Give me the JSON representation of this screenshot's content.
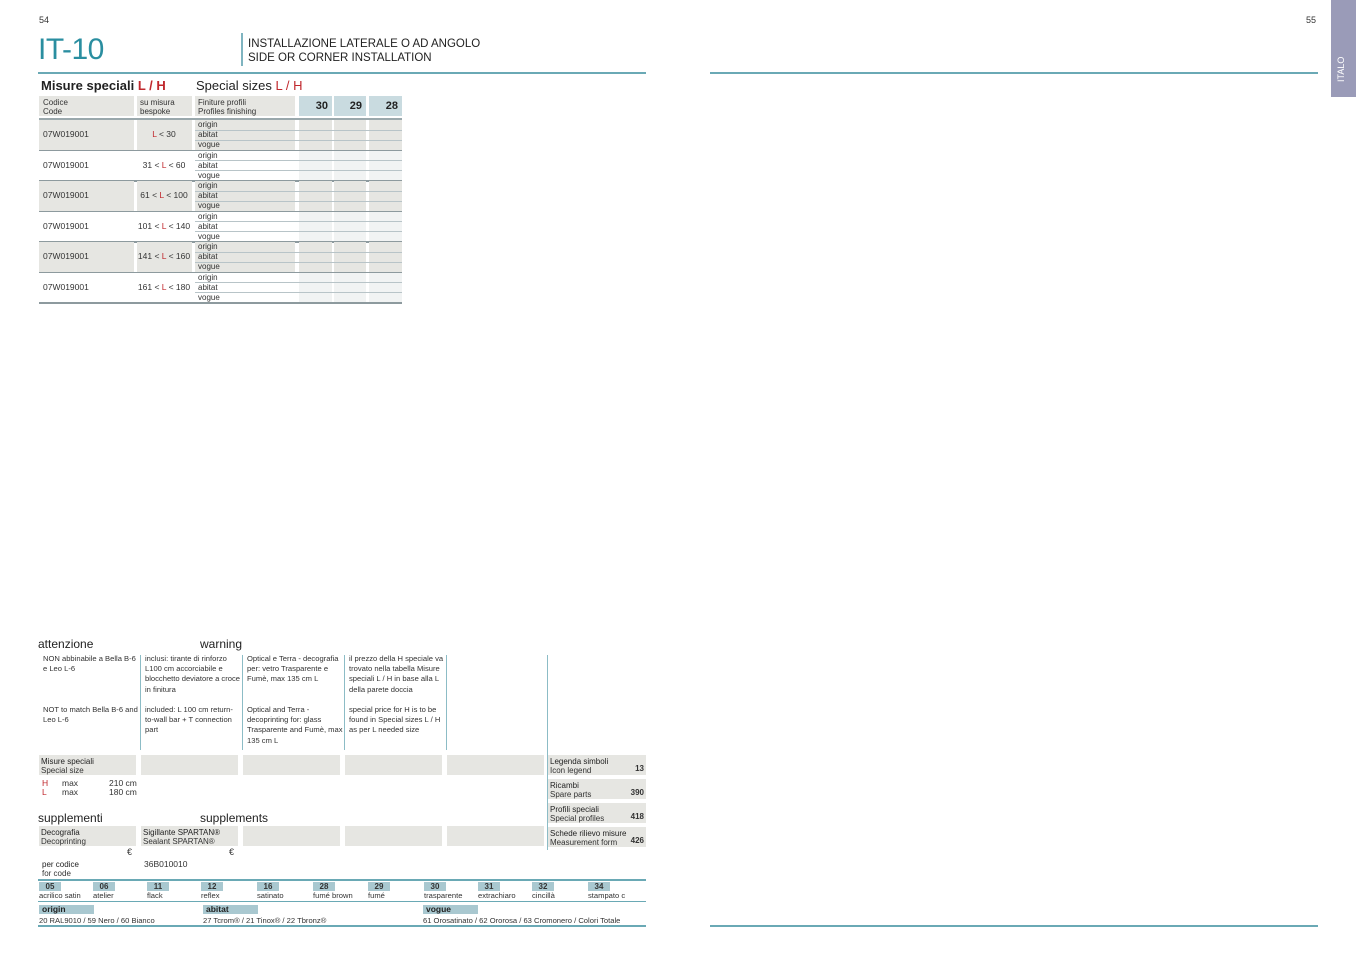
{
  "page_left": "54",
  "page_right": "55",
  "title": "IT-10",
  "subtitle": [
    "INSTALLAZIONE LATERALE O AD ANGOLO",
    "SIDE OR CORNER INSTALLATION"
  ],
  "side_tab": "ITALO",
  "special_sizes": {
    "it": "Misure speciali",
    "en": "Special sizes",
    "lh": "L / H",
    "headers": {
      "code_it": "Codice",
      "code_en": "Code",
      "bespoke_it": "su misura",
      "bespoke_en": "bespoke",
      "finish_it": "Finiture profili",
      "finish_en": "Profiles finishing",
      "cols": [
        "30",
        "29",
        "28"
      ]
    },
    "finishes": [
      "origin",
      "abitat",
      "vogue"
    ],
    "rows": [
      {
        "code": "07W019001",
        "pre": "",
        "post": " < 30"
      },
      {
        "code": "07W019001",
        "pre": "31 < ",
        "post": " < 60"
      },
      {
        "code": "07W019001",
        "pre": "61 < ",
        "post": " < 100"
      },
      {
        "code": "07W019001",
        "pre": "101 < ",
        "post": " < 140"
      },
      {
        "code": "07W019001",
        "pre": "141 < ",
        "post": " < 160"
      },
      {
        "code": "07W019001",
        "pre": "161 < ",
        "post": " < 180"
      }
    ]
  },
  "warning": {
    "it": "attenzione",
    "en": "warning",
    "notes": [
      {
        "it": "NON abbinabile a Bella B-6 e Leo L-6",
        "en": "NOT to match Bella B-6 and Leo L-6"
      },
      {
        "it": "inclusi: tirante di rinforzo L100 cm accorciabile e blocchetto deviatore a croce in finitura",
        "en": "included: L 100 cm return-to-wall bar + T connection part"
      },
      {
        "it": "Optical e Terra - decografia per: vetro Trasparente e Fumè, max 135 cm L",
        "en": "Optical and Terra - decoprinting for: glass Trasparente and Fumè, max 135 cm L"
      },
      {
        "it": "il prezzo della H speciale va trovato nella tabella Misure speciali L / H in base alla L della parete doccia",
        "en": "special price for H is to be found in Special sizes L / H as per L needed size"
      }
    ]
  },
  "special_size_box": {
    "it": "Misure speciali",
    "en": "Special size",
    "h": "H",
    "l": "L",
    "max": "max",
    "h_val": "210 cm",
    "l_val": "180 cm"
  },
  "refs": [
    {
      "it": "Legenda simboli",
      "en": "Icon legend",
      "page": "13"
    },
    {
      "it": "Ricambi",
      "en": "Spare parts",
      "page": "390"
    },
    {
      "it": "Profili speciali",
      "en": "Special profiles",
      "page": "418"
    },
    {
      "it": "Schede rilievo misure",
      "en": "Measurement form",
      "page": "426"
    }
  ],
  "supplements": {
    "it": "supplementi",
    "en": "supplements",
    "items": [
      {
        "it": "Decografia",
        "en": "Decoprinting",
        "currency": "€"
      },
      {
        "it": "Sigillante SPARTAN®",
        "en": "Sealant SPARTAN®",
        "currency": "€"
      }
    ],
    "per_code_it": "per codice",
    "per_code_en": "for code",
    "code": "36B010010"
  },
  "glass": [
    [
      "05",
      "acrilico satin"
    ],
    [
      "06",
      "atelier"
    ],
    [
      "11",
      "flack"
    ],
    [
      "12",
      "reflex"
    ],
    [
      "16",
      "satinato"
    ],
    [
      "28",
      "fumé brown"
    ],
    [
      "29",
      "fumé"
    ],
    [
      "30",
      "trasparente"
    ],
    [
      "31",
      "extrachiaro"
    ],
    [
      "32",
      "cincillà"
    ],
    [
      "34",
      "stampato c"
    ]
  ],
  "profiles": [
    {
      "name": "origin",
      "colors": "20 RAL9010 / 59 Nero / 60 Bianco"
    },
    {
      "name": "abitat",
      "colors": "27 Tcrom® / 21 Tinox® / 22 Tbronz®"
    },
    {
      "name": "vogue",
      "colors": "61 Orosatinato / 62 Ororosa / 63 Cromonero / Colori Totale"
    }
  ],
  "colors": {
    "accent": "#2a8ea0",
    "red": "#c0282d",
    "tab": "#9a9bb8"
  }
}
